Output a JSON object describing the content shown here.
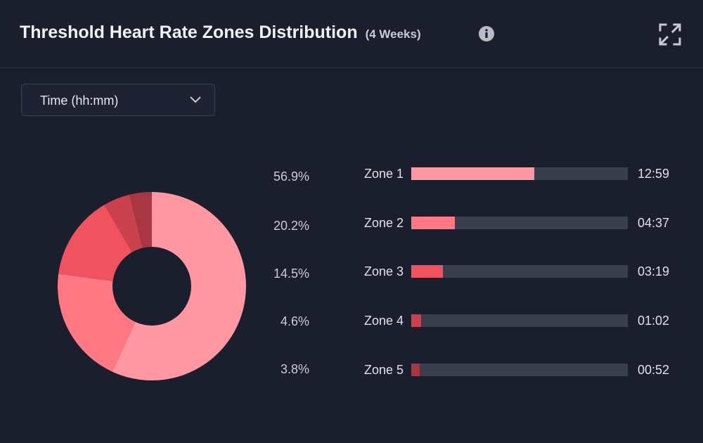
{
  "header": {
    "title": "Threshold Heart Rate Zones Distribution",
    "subtitle": "(4 Weeks)",
    "info_icon": "info-icon",
    "expand_icon": "expand-icon"
  },
  "dropdown": {
    "selected": "Time (hh:mm)",
    "icon": "chevron-down-icon"
  },
  "chart_data": {
    "type": "pie",
    "title": "Threshold Heart Rate Zones Distribution",
    "categories": [
      "Zone 1",
      "Zone 2",
      "Zone 3",
      "Zone 4",
      "Zone 5"
    ],
    "values": [
      56.9,
      20.2,
      14.5,
      4.6,
      3.8
    ],
    "value_labels": [
      "56.9%",
      "20.2%",
      "14.5%",
      "4.6%",
      "3.8%"
    ],
    "times": [
      "12:59",
      "04:37",
      "03:19",
      "01:02",
      "00:52"
    ],
    "colors": [
      "#ff98a2",
      "#ff7884",
      "#f0535f",
      "#c9424d",
      "#a83743"
    ],
    "track_color": "#3b3f4d"
  }
}
